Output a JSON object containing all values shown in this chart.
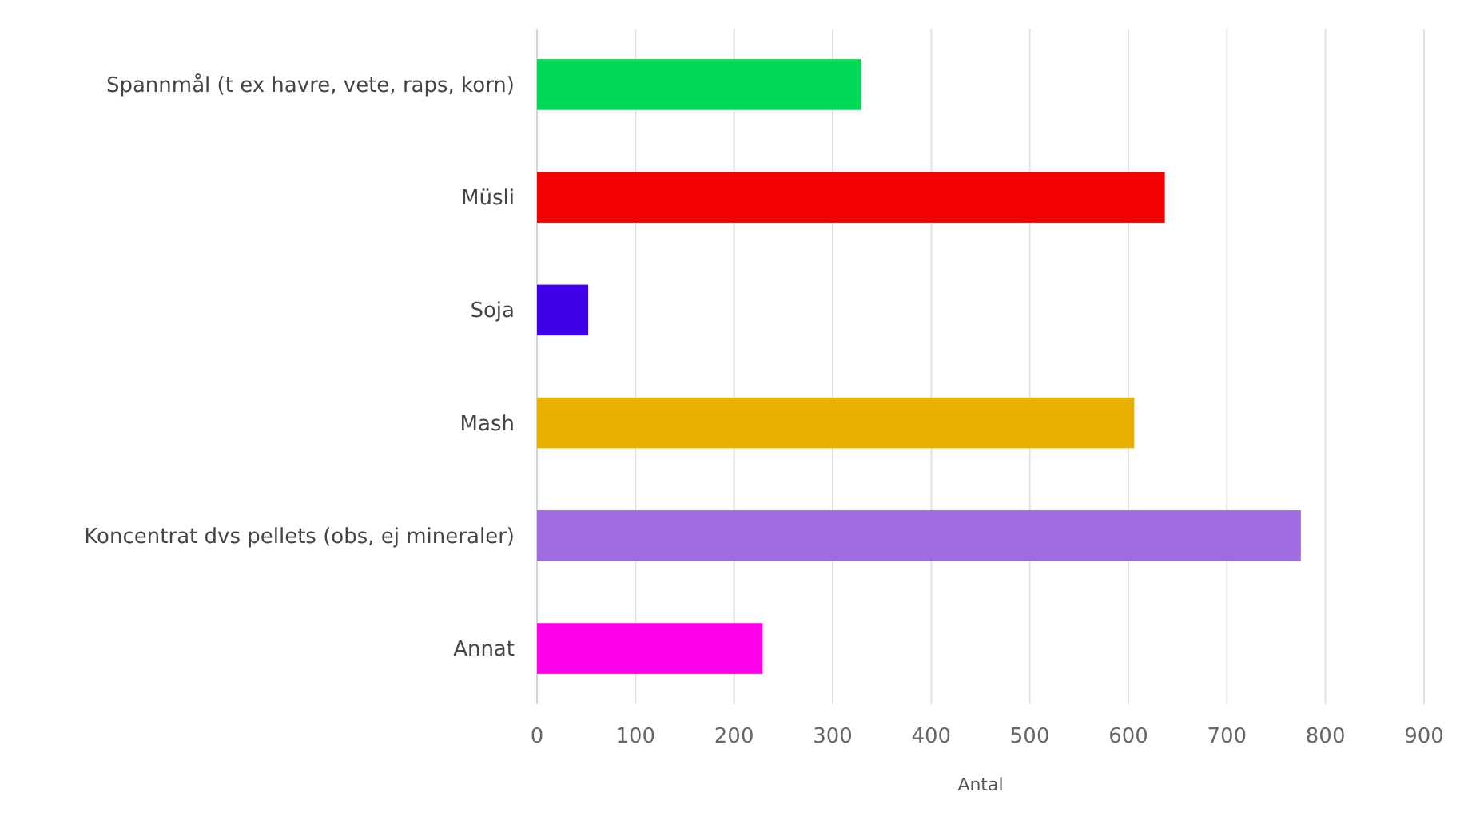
{
  "chart_data": {
    "type": "bar",
    "orientation": "horizontal",
    "xlabel": "Antal",
    "categories": [
      "Spannmål (t ex havre, vete, raps, korn)",
      "Müsli",
      "Soja",
      "Mash",
      "Koncentrat dvs pellets (obs, ej mineraler)",
      "Annat"
    ],
    "values": [
      329,
      637,
      52,
      606,
      775,
      229
    ],
    "colors": [
      "#00d955",
      "#f50000",
      "#3f00e8",
      "#eab200",
      "#9e6ce0",
      "#ff00e8"
    ],
    "xlim": [
      0,
      900
    ],
    "xticks": [
      0,
      100,
      200,
      300,
      400,
      500,
      600,
      700,
      800,
      900
    ],
    "grid": "x"
  }
}
